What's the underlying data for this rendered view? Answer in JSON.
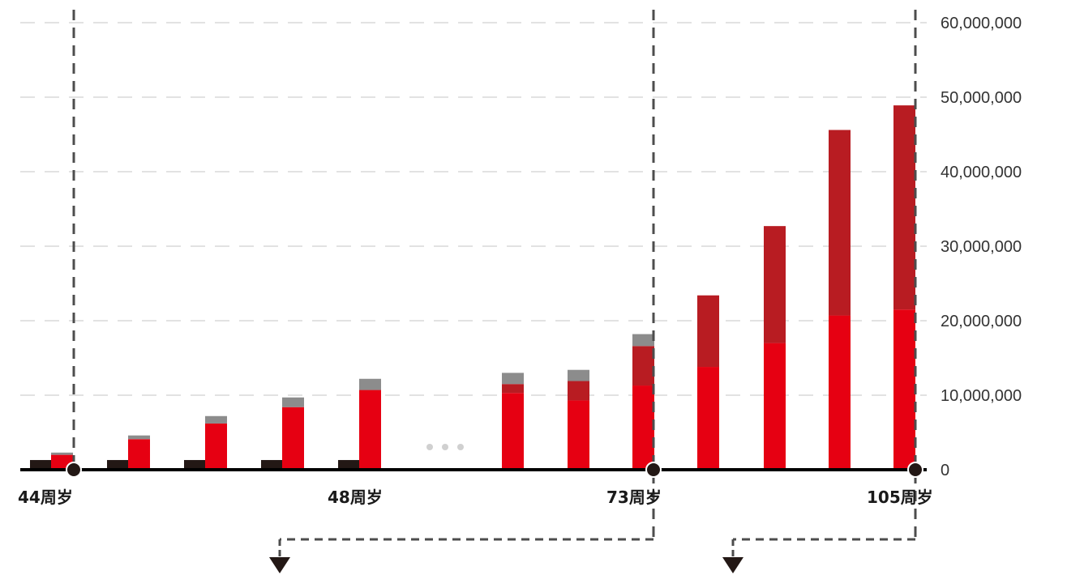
{
  "chart_data": {
    "type": "bar",
    "colors": {
      "black_base": "#231815",
      "red": "#e60012",
      "dark_red": "#b81c22",
      "gray": "#8c8c8c",
      "grid": "#d9d9d9",
      "axis": "#000000",
      "dashed": "#4d4d4d",
      "ellipsis": "#d0d0d0"
    },
    "y_axis": {
      "position": "right",
      "range": [
        0,
        60000000
      ],
      "ticks": [
        {
          "value": 0,
          "label": "0"
        },
        {
          "value": 10000000,
          "label": "10,000,000"
        },
        {
          "value": 20000000,
          "label": "20,000,000"
        },
        {
          "value": 30000000,
          "label": "30,000,000"
        },
        {
          "value": 40000000,
          "label": "40,000,000"
        },
        {
          "value": 50000000,
          "label": "50,000,000"
        },
        {
          "value": 60000000,
          "label": "60,000,000"
        }
      ],
      "grid": true
    },
    "age_labels": [
      "44周岁",
      "48周岁",
      "73周岁",
      "105周岁"
    ],
    "ellipsis_text": "• • •",
    "groups": [
      {
        "black": 1300000,
        "red": 2000000,
        "dark_red": 0,
        "gray": 300000
      },
      {
        "black": 1300000,
        "red": 4100000,
        "dark_red": 0,
        "gray": 500000
      },
      {
        "black": 1300000,
        "red": 6200000,
        "dark_red": 0,
        "gray": 1000000
      },
      {
        "black": 1300000,
        "red": 8400000,
        "dark_red": 0,
        "gray": 1300000
      },
      {
        "black": 1300000,
        "red": 10700000,
        "dark_red": 0,
        "gray": 1500000
      },
      {
        "black": 0,
        "red": 10300000,
        "dark_red": 1200000,
        "gray": 1500000
      },
      {
        "black": 0,
        "red": 9300000,
        "dark_red": 2600000,
        "gray": 1500000
      },
      {
        "black": 0,
        "red": 11300000,
        "dark_red": 5300000,
        "gray": 1600000
      },
      {
        "black": 0,
        "red": 13800000,
        "dark_red": 9600000,
        "gray": 0
      },
      {
        "black": 0,
        "red": 17000000,
        "dark_red": 15700000,
        "gray": 0
      },
      {
        "black": 0,
        "red": 20700000,
        "dark_red": 24900000,
        "gray": 0
      },
      {
        "black": 0,
        "red": 21500000,
        "dark_red": 27400000,
        "gray": 0
      }
    ]
  }
}
